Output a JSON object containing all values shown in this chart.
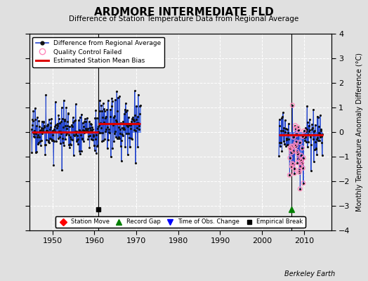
{
  "title": "ARDMORE INTERMEDIATE FLD",
  "subtitle": "Difference of Station Temperature Data from Regional Average",
  "ylabel": "Monthly Temperature Anomaly Difference (°C)",
  "xlabel_credit": "Berkeley Earth",
  "xlim": [
    1944.5,
    2016.5
  ],
  "ylim": [
    -4,
    4
  ],
  "yticks": [
    -4,
    -3,
    -2,
    -1,
    0,
    1,
    2,
    3,
    4
  ],
  "xticks": [
    1950,
    1960,
    1970,
    1980,
    1990,
    2000,
    2010
  ],
  "background_color": "#e0e0e0",
  "plot_bg_color": "#e8e8e8",
  "seg1_start": 1945.0,
  "seg1_end": 1971.0,
  "seg1_break": 1961.0,
  "seg2_start": 2004.0,
  "seg2_end": 2014.5,
  "bias1a": 0.0,
  "bias1b": 0.35,
  "bias2": -0.1,
  "vline1_x": 1961.0,
  "vline2_x": 2007.0,
  "emp_break_x": 1961.0,
  "emp_break_y": -3.15,
  "rec_gap_x": 2007.0,
  "rec_gap_y": -3.15,
  "seed": 17,
  "qc_start": 2006.5,
  "qc_end": 2010.0,
  "grid_color": "#ffffff",
  "grid_alpha": 1.0,
  "stem_color": "#6688ee",
  "dot_color": "#111111",
  "line_color": "#2244cc",
  "red_line_color": "#dd0000",
  "qc_color": "#ff88bb"
}
